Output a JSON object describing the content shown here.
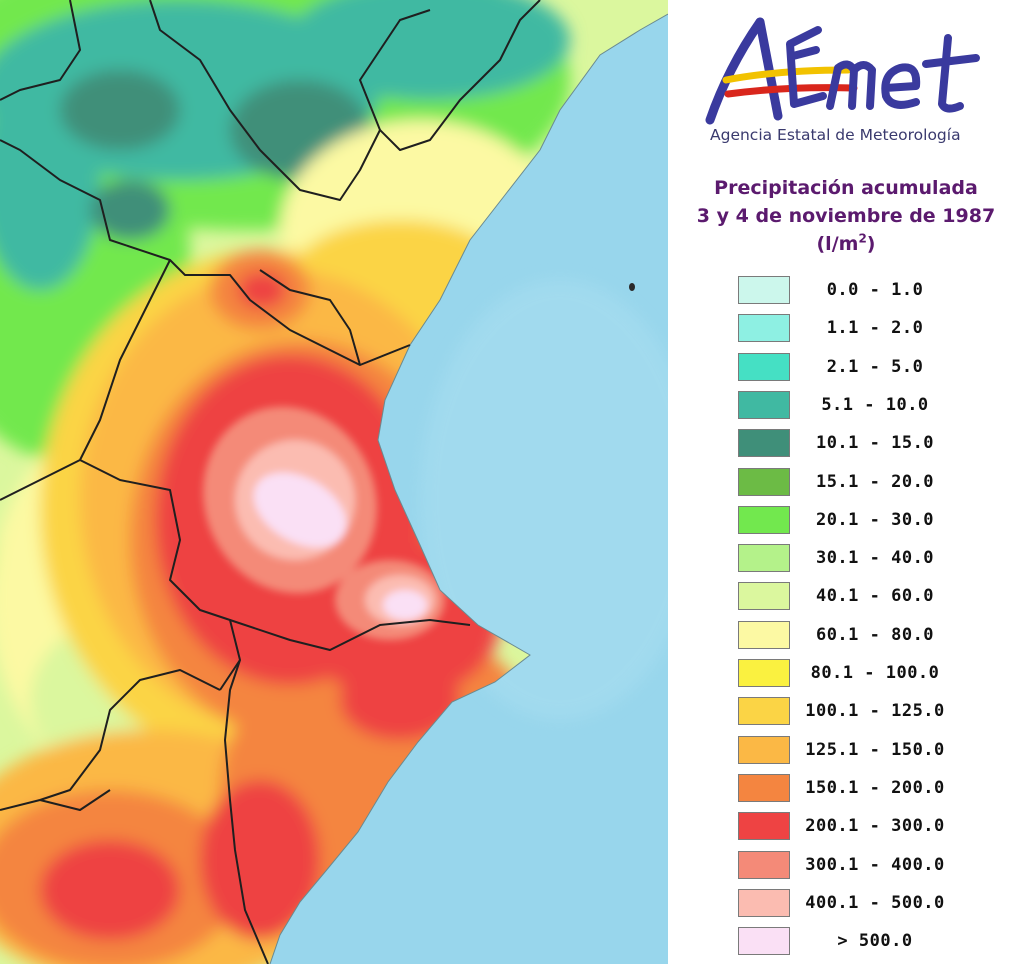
{
  "logo": {
    "wordmark": "AEmet",
    "agency_name": "Agencia Estatal de Meteorología"
  },
  "title": {
    "line1": "Precipitación acumulada",
    "line2": "3 y 4 de noviembre de 1987",
    "unit_prefix": "(l/m",
    "unit_sup": "2",
    "unit_suffix": ")"
  },
  "legend": [
    {
      "label": "0.0 - 1.0",
      "color": "#ccf7ec"
    },
    {
      "label": "1.1 - 2.0",
      "color": "#8ef0e3"
    },
    {
      "label": "2.1 - 5.0",
      "color": "#45e0c4"
    },
    {
      "label": "5.1 - 10.0",
      "color": "#40b9a2"
    },
    {
      "label": "10.1 - 15.0",
      "color": "#3f8f79"
    },
    {
      "label": "15.1 - 20.0",
      "color": "#6cbb45"
    },
    {
      "label": "20.1 - 30.0",
      "color": "#72e84e"
    },
    {
      "label": "30.1 - 40.0",
      "color": "#b4f28a"
    },
    {
      "label": "40.1 - 60.0",
      "color": "#dbf79e"
    },
    {
      "label": "60.1 - 80.0",
      "color": "#fcf9a3"
    },
    {
      "label": "80.1 - 100.0",
      "color": "#faf140"
    },
    {
      "label": "100.1 - 125.0",
      "color": "#fbd445"
    },
    {
      "label": "125.1 - 150.0",
      "color": "#fbb845"
    },
    {
      "label": "150.1 - 200.0",
      "color": "#f48540"
    },
    {
      "label": "200.1 - 300.0",
      "color": "#ee4343"
    },
    {
      "label": "300.1 - 400.0",
      "color": "#f48a78"
    },
    {
      "label": "400.1 - 500.0",
      "color": "#fbbcb1"
    },
    {
      "label": "> 500.0",
      "color": "#fae0f5"
    }
  ],
  "colors": {
    "sea": "#98d6ec",
    "title": "#5b1a6e",
    "logo_blue": "#3a3a9e",
    "logo_red": "#d9261c",
    "logo_yellow": "#f2c200"
  }
}
